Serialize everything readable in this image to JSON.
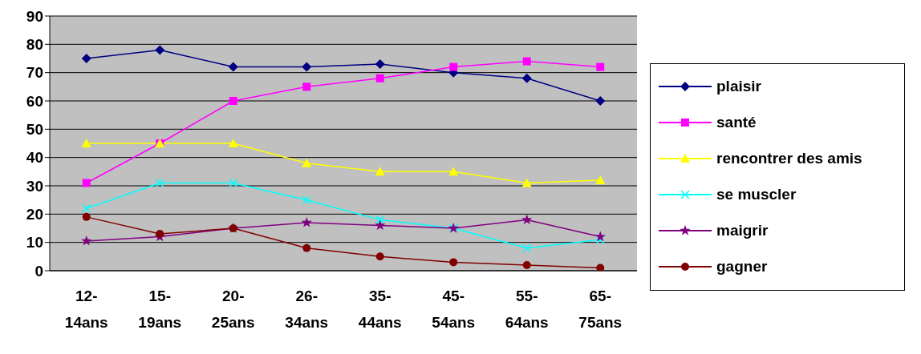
{
  "chart_data": {
    "type": "line",
    "categories": [
      "12-14ans",
      "15-19ans",
      "20-25ans",
      "26-34ans",
      "35-44ans",
      "45-54ans",
      "55-64ans",
      "65-75ans"
    ],
    "series": [
      {
        "name": "plaisir",
        "color": "#000080",
        "marker": "diamond",
        "values": [
          75,
          78,
          72,
          72,
          73,
          70,
          68,
          60
        ]
      },
      {
        "name": "santé",
        "color": "#ff00ff",
        "marker": "square",
        "values": [
          31,
          45,
          60,
          65,
          68,
          72,
          74,
          72
        ]
      },
      {
        "name": "rencontrer des amis",
        "color": "#ffff00",
        "marker": "triangle",
        "values": [
          45,
          45,
          45,
          38,
          35,
          35,
          31,
          32
        ]
      },
      {
        "name": "se muscler",
        "color": "#00ffff",
        "marker": "cross",
        "values": [
          22,
          31,
          31,
          25,
          18,
          15,
          8,
          11
        ]
      },
      {
        "name": "maigrir",
        "color": "#800080",
        "marker": "star",
        "values": [
          10.5,
          12,
          15,
          17,
          16,
          15,
          18,
          12
        ]
      },
      {
        "name": "gagner",
        "color": "#800000",
        "marker": "circle",
        "values": [
          19,
          13,
          15,
          8,
          5,
          3,
          2,
          1
        ]
      }
    ],
    "ylim": [
      0,
      90
    ],
    "yticks": [
      0,
      10,
      20,
      30,
      40,
      50,
      60,
      70,
      80,
      90
    ],
    "grid": "y",
    "legend": "right"
  }
}
